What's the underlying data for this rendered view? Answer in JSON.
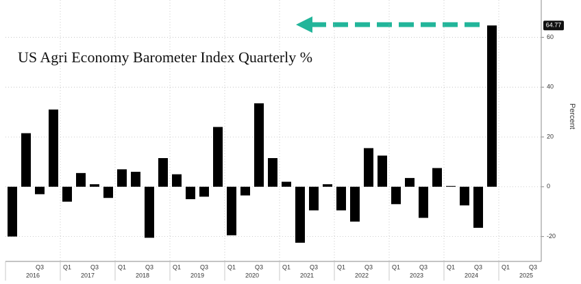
{
  "chart_data": {
    "type": "bar",
    "title": "US Agri Economy Barometer Index Quarterly %",
    "y_label": "Percent",
    "color": "#000000",
    "categories": [
      null,
      null,
      "Q3",
      null,
      "Q1",
      null,
      "Q3",
      null,
      "Q1",
      null,
      "Q3",
      null,
      "Q1",
      null,
      "Q3",
      null,
      "Q1",
      null,
      "Q3",
      null,
      "Q1",
      null,
      "Q3",
      null,
      "Q1",
      null,
      "Q3",
      null,
      "Q1",
      null,
      "Q3",
      null,
      "Q1",
      null,
      "Q3",
      null,
      "Q1",
      null,
      "Q3",
      null
    ],
    "years": [
      "2016",
      "2017",
      "2018",
      "2019",
      "2020",
      "2021",
      "2022",
      "2023",
      "2024",
      "2025"
    ],
    "values": [
      -20,
      21.5,
      -3,
      31,
      -6,
      5.5,
      1,
      -4.5,
      7,
      6,
      -20.5,
      11.5,
      5,
      -5,
      -4,
      24,
      -19.5,
      -3.5,
      33.5,
      11.5,
      2,
      -22.5,
      -9.5,
      1,
      -9.5,
      -14,
      15.5,
      12.5,
      -7,
      3.5,
      -12.5,
      7.5,
      0.3,
      -7.5,
      -16.5,
      64.77,
      null,
      null,
      null,
      null
    ],
    "value_labels": [
      null,
      null,
      null,
      null,
      null,
      null,
      null,
      null,
      null,
      null,
      null,
      null,
      null,
      null,
      null,
      null,
      null,
      null,
      null,
      null,
      null,
      null,
      null,
      null,
      null,
      null,
      null,
      null,
      null,
      null,
      null,
      null,
      null,
      null,
      null,
      "64.77",
      null,
      null,
      null,
      null
    ],
    "ylim": [
      -30,
      75
    ],
    "yticks": [
      -20,
      0,
      20,
      40,
      60
    ],
    "grid": true
  }
}
